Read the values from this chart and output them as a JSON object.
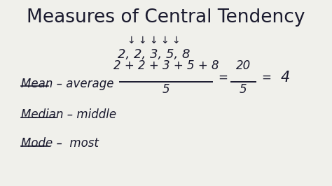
{
  "title": "Measures of Central Tendency",
  "bg_color": "#f0f0eb",
  "text_color": "#1a1a2e",
  "arrows_text": "↓ ↓ ↓ ↓ ↓",
  "dataset_text": "2, 2, 3, 5, 8",
  "mean_label": "Mean",
  "mean_def": " – average",
  "median_label": "Median",
  "median_def": " – middle",
  "mode_label": "Mode",
  "mode_def": " –  most",
  "formula_numerator": "2 + 2 + 3 + 5 + 8",
  "formula_denominator": "5",
  "formula_result1_num": "20",
  "formula_result1_den": "5",
  "formula_result2": "4",
  "title_fontsize": 19,
  "body_fontsize": 12,
  "formula_fontsize": 12
}
